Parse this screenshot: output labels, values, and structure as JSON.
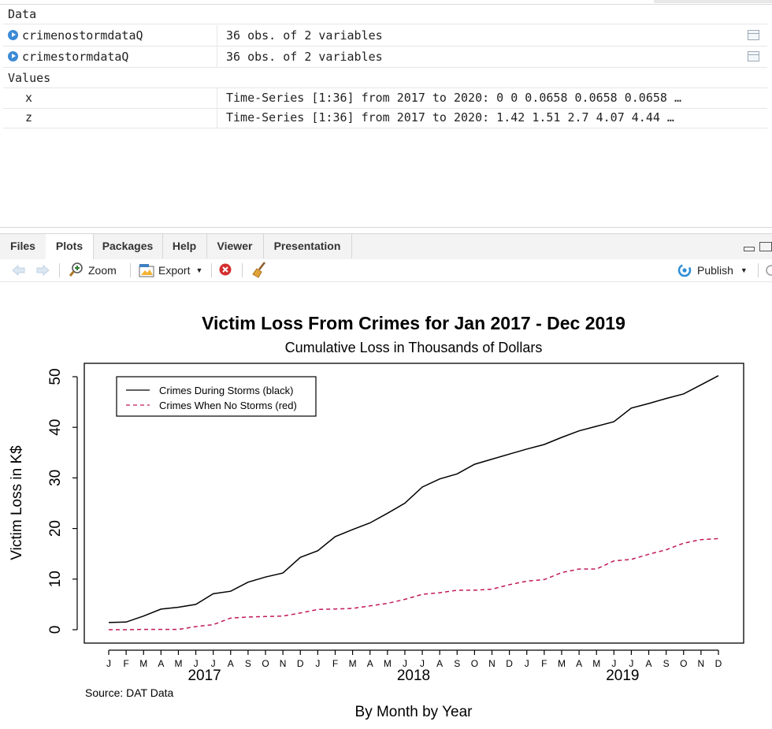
{
  "environment": {
    "data_header": "Data",
    "data_rows": [
      {
        "name": "crimenostormdataQ",
        "value": "36 obs. of 2 variables"
      },
      {
        "name": "crimestormdataQ",
        "value": "36 obs. of 2 variables"
      }
    ],
    "values_header": "Values",
    "value_rows": [
      {
        "name": "x",
        "value": "Time-Series [1:36] from 2017 to 2020: 0 0 0.0658 0.0658 0.0658 …"
      },
      {
        "name": "z",
        "value": "Time-Series [1:36] from 2017 to 2020: 1.42 1.51 2.7 4.07 4.44 …"
      }
    ]
  },
  "tabs": [
    "Files",
    "Plots",
    "Packages",
    "Help",
    "Viewer",
    "Presentation"
  ],
  "active_tab": "Plots",
  "toolbar": {
    "back_icon": "arrow-left-icon",
    "forward_icon": "arrow-right-icon",
    "zoom_label": "Zoom",
    "export_label": "Export",
    "publish_label": "Publish",
    "remove_icon": "remove-plot-icon",
    "clear_icon": "broom-icon"
  },
  "chart_data": {
    "type": "line",
    "title": "Victim Loss From Crimes for Jan 2017 - Dec 2019",
    "subtitle": "Cumulative Loss in Thousands of Dollars",
    "xlabel": "By Month by Year",
    "ylabel": "Victim Loss in K$",
    "source": "Source: DAT Data",
    "ylim": [
      0,
      50
    ],
    "yticks": [
      "0",
      "10",
      "20",
      "30",
      "40",
      "50"
    ],
    "month_labels": [
      "J",
      "F",
      "M",
      "A",
      "M",
      "J",
      "J",
      "A",
      "S",
      "O",
      "N",
      "D",
      "J",
      "F",
      "M",
      "A",
      "M",
      "J",
      "J",
      "A",
      "S",
      "O",
      "N",
      "D",
      "J",
      "F",
      "M",
      "A",
      "M",
      "J",
      "J",
      "A",
      "S",
      "O",
      "N",
      "D"
    ],
    "year_labels": [
      "2017",
      "2018",
      "2019"
    ],
    "legend_position": "top-left",
    "series": [
      {
        "name": "Crimes During Storms (black)",
        "color": "#000000",
        "dash": "solid",
        "values": [
          1.42,
          1.51,
          2.7,
          4.07,
          4.44,
          5.0,
          7.1,
          7.6,
          9.4,
          10.4,
          11.2,
          14.3,
          15.6,
          18.4,
          19.8,
          21.1,
          23.0,
          25.0,
          28.2,
          29.8,
          30.8,
          32.7,
          33.7,
          34.7,
          35.7,
          36.6,
          38.0,
          39.3,
          40.2,
          41.1,
          43.8,
          44.7,
          45.7,
          46.6,
          48.4,
          50.2
        ]
      },
      {
        "name": "Crimes When No Storms (red)",
        "color": "#c2185b",
        "dash": "dashed",
        "values": [
          0,
          0,
          0.0658,
          0.0658,
          0.0658,
          0.6,
          1.0,
          2.3,
          2.5,
          2.6,
          2.7,
          3.3,
          4.0,
          4.1,
          4.2,
          4.7,
          5.2,
          6.0,
          7.0,
          7.3,
          7.8,
          7.8,
          8.0,
          8.9,
          9.6,
          9.9,
          11.3,
          12.0,
          12.0,
          13.6,
          13.9,
          14.9,
          15.8,
          17.1,
          17.8,
          18.0
        ]
      }
    ]
  }
}
